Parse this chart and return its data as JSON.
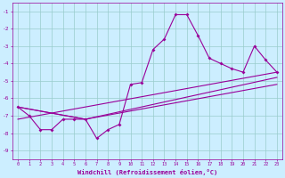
{
  "xlabel": "Windchill (Refroidissement éolien,°C)",
  "bg_color": "#cceeff",
  "grid_color": "#99cccc",
  "line_color": "#990099",
  "xlim": [
    -0.5,
    23.5
  ],
  "ylim": [
    -9.5,
    -0.5
  ],
  "xticks": [
    0,
    1,
    2,
    3,
    4,
    5,
    6,
    7,
    8,
    9,
    10,
    11,
    12,
    13,
    14,
    15,
    16,
    17,
    18,
    19,
    20,
    21,
    22,
    23
  ],
  "yticks": [
    -9,
    -8,
    -7,
    -6,
    -5,
    -4,
    -3,
    -2,
    -1
  ],
  "line1_x": [
    0,
    1,
    2,
    3,
    4,
    5,
    6,
    7,
    8,
    9,
    10,
    11,
    12,
    13,
    14,
    15,
    16,
    17,
    18,
    19,
    20,
    21,
    22,
    23
  ],
  "line1_y": [
    -6.5,
    -7.0,
    -7.8,
    -7.8,
    -7.2,
    -7.2,
    -7.2,
    -8.3,
    -7.8,
    -7.5,
    -5.2,
    -5.1,
    -3.2,
    -2.6,
    -1.2,
    -1.2,
    -2.4,
    -3.7,
    -4.0,
    -4.3,
    -4.5,
    -3.0,
    -3.8,
    -4.5
  ],
  "line2_x": [
    0,
    23
  ],
  "line2_y": [
    -7.2,
    -4.5
  ],
  "line3_x": [
    0,
    6,
    23
  ],
  "line3_y": [
    -6.5,
    -7.2,
    -4.8
  ],
  "line4_x": [
    0,
    6,
    23
  ],
  "line4_y": [
    -6.5,
    -7.2,
    -5.2
  ]
}
